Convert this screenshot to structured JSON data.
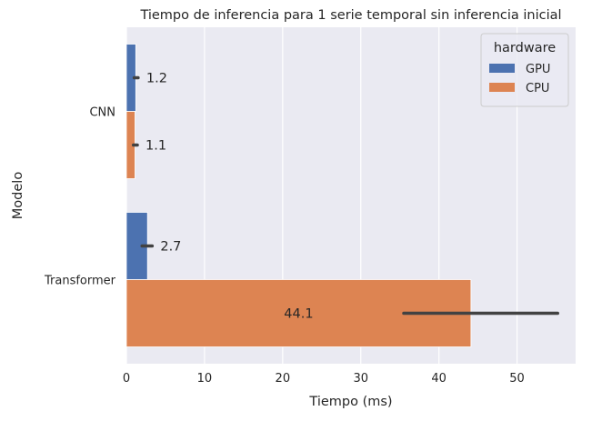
{
  "chart_data": {
    "type": "bar",
    "orientation": "horizontal",
    "title": "Tiempo de inferencia para 1 serie temporal sin inferencia inicial",
    "xlabel": "Tiempo (ms)",
    "ylabel": "Modelo",
    "xlim": [
      0,
      57.5
    ],
    "xticks": [
      0,
      10,
      20,
      30,
      40,
      50
    ],
    "grid": true,
    "categories": [
      "CNN",
      "Transformer"
    ],
    "legend": {
      "title": "hardware",
      "placement": "top-right"
    },
    "series": [
      {
        "name": "GPU",
        "color": "#4c72b0",
        "values": [
          1.2,
          2.7
        ],
        "error": [
          [
            1.0,
            1.5
          ],
          [
            2.0,
            3.3
          ]
        ],
        "labels": [
          "1.2",
          "2.7"
        ]
      },
      {
        "name": "CPU",
        "color": "#dd8452",
        "values": [
          1.1,
          44.1
        ],
        "error": [
          [
            0.9,
            1.4
          ],
          [
            35.5,
            55.2
          ]
        ],
        "labels": [
          "1.1",
          "44.1"
        ]
      }
    ]
  }
}
